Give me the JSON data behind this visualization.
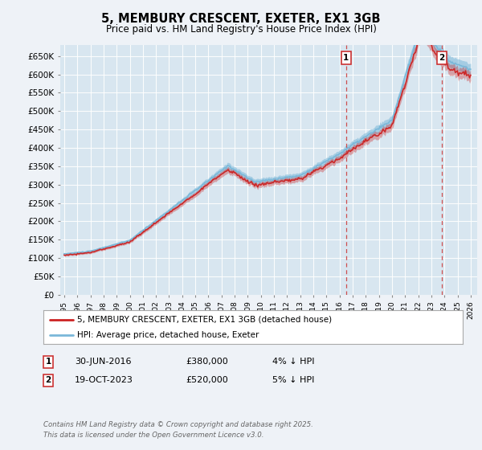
{
  "title": "5, MEMBURY CRESCENT, EXETER, EX1 3GB",
  "subtitle": "Price paid vs. HM Land Registry's House Price Index (HPI)",
  "ylim": [
    0,
    680000
  ],
  "yticks": [
    0,
    50000,
    100000,
    150000,
    200000,
    250000,
    300000,
    350000,
    400000,
    450000,
    500000,
    550000,
    600000,
    650000
  ],
  "ytick_labels": [
    "£0",
    "£50K",
    "£100K",
    "£150K",
    "£200K",
    "£250K",
    "£300K",
    "£350K",
    "£400K",
    "£450K",
    "£500K",
    "£550K",
    "£600K",
    "£650K"
  ],
  "hpi_color": "#7ab8d9",
  "price_color": "#cc2222",
  "vline_color": "#cc3333",
  "marker1_year": 2016.5,
  "marker2_year": 2023.79,
  "legend_line1": "5, MEMBURY CRESCENT, EXETER, EX1 3GB (detached house)",
  "legend_line2": "HPI: Average price, detached house, Exeter",
  "ann1_box": "1",
  "ann1_date": "30-JUN-2016",
  "ann1_price": "£380,000",
  "ann1_hpi": "4% ↓ HPI",
  "ann2_box": "2",
  "ann2_date": "19-OCT-2023",
  "ann2_price": "£520,000",
  "ann2_hpi": "5% ↓ HPI",
  "footer": "Contains HM Land Registry data © Crown copyright and database right 2025.\nThis data is licensed under the Open Government Licence v3.0.",
  "bg_color": "#eef2f7",
  "plot_bg_color": "#d8e6f0",
  "grid_color": "#ffffff",
  "start_year": 1995,
  "end_year": 2026
}
